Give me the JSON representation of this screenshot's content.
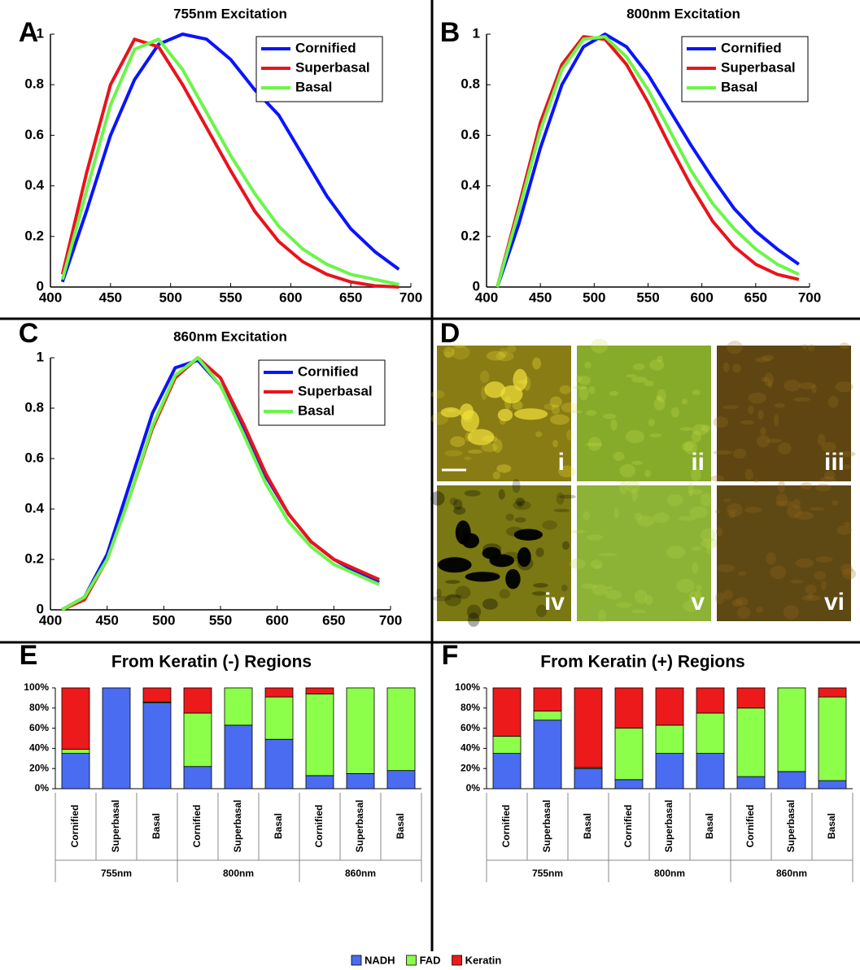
{
  "chart_data": [
    {
      "type": "line",
      "panel": "A",
      "title": "755nm Excitation",
      "legend": "upper right",
      "x": [
        410,
        430,
        450,
        470,
        490,
        510,
        530,
        550,
        570,
        590,
        610,
        630,
        650,
        670,
        690
      ],
      "xlim": [
        400,
        700
      ],
      "xticks": [
        400,
        450,
        500,
        550,
        600,
        650,
        700
      ],
      "ylim": [
        0,
        1
      ],
      "yticks": [
        0,
        0.2,
        0.4,
        0.6,
        0.8,
        1
      ],
      "series": [
        {
          "name": "Cornified",
          "color": "#0a14ff",
          "values": [
            0.02,
            0.3,
            0.6,
            0.82,
            0.96,
            1.0,
            0.98,
            0.9,
            0.78,
            0.68,
            0.52,
            0.36,
            0.23,
            0.14,
            0.07
          ]
        },
        {
          "name": "Superbasal",
          "color": "#e8141c",
          "values": [
            0.05,
            0.45,
            0.8,
            0.98,
            0.95,
            0.8,
            0.63,
            0.46,
            0.3,
            0.18,
            0.1,
            0.05,
            0.02,
            0.005,
            0
          ]
        },
        {
          "name": "Basal",
          "color": "#6cf54a",
          "values": [
            0.03,
            0.38,
            0.72,
            0.94,
            0.98,
            0.86,
            0.69,
            0.52,
            0.37,
            0.24,
            0.15,
            0.09,
            0.05,
            0.03,
            0.01
          ]
        }
      ]
    },
    {
      "type": "line",
      "panel": "B",
      "title": "800nm Excitation",
      "legend": "upper right",
      "x": [
        410,
        430,
        450,
        470,
        490,
        510,
        530,
        550,
        570,
        590,
        610,
        630,
        650,
        670,
        690
      ],
      "xlim": [
        400,
        700
      ],
      "xticks": [
        400,
        450,
        500,
        550,
        600,
        650,
        700
      ],
      "ylim": [
        0,
        1
      ],
      "yticks": [
        0,
        0.2,
        0.4,
        0.6,
        0.8,
        1
      ],
      "series": [
        {
          "name": "Cornified",
          "color": "#0a14ff",
          "values": [
            0,
            0.25,
            0.55,
            0.8,
            0.95,
            1.0,
            0.95,
            0.84,
            0.7,
            0.56,
            0.43,
            0.31,
            0.22,
            0.15,
            0.09
          ]
        },
        {
          "name": "Superbasal",
          "color": "#e8141c",
          "values": [
            0,
            0.32,
            0.65,
            0.88,
            0.99,
            0.98,
            0.88,
            0.73,
            0.56,
            0.4,
            0.26,
            0.16,
            0.09,
            0.05,
            0.03
          ]
        },
        {
          "name": "Basal",
          "color": "#6cf54a",
          "values": [
            0,
            0.3,
            0.62,
            0.86,
            0.98,
            0.99,
            0.91,
            0.78,
            0.62,
            0.46,
            0.33,
            0.23,
            0.15,
            0.09,
            0.05
          ]
        }
      ]
    },
    {
      "type": "line",
      "panel": "C",
      "title": "860nm Excitation",
      "legend": "upper right",
      "x": [
        410,
        430,
        450,
        470,
        490,
        510,
        530,
        550,
        570,
        590,
        610,
        630,
        650,
        670,
        690
      ],
      "xlim": [
        400,
        700
      ],
      "xticks": [
        400,
        450,
        500,
        550,
        600,
        650,
        700
      ],
      "ylim": [
        0,
        1
      ],
      "yticks": [
        0,
        0.2,
        0.4,
        0.6,
        0.8,
        1
      ],
      "series": [
        {
          "name": "Cornified",
          "color": "#0a14ff",
          "values": [
            0,
            0.05,
            0.22,
            0.5,
            0.78,
            0.96,
            0.99,
            0.89,
            0.72,
            0.53,
            0.38,
            0.27,
            0.2,
            0.15,
            0.11
          ]
        },
        {
          "name": "Superbasal",
          "color": "#e8141c",
          "values": [
            0,
            0.04,
            0.2,
            0.45,
            0.72,
            0.92,
            1.0,
            0.92,
            0.74,
            0.54,
            0.38,
            0.27,
            0.2,
            0.16,
            0.12
          ]
        },
        {
          "name": "Basal",
          "color": "#6cf54a",
          "values": [
            0,
            0.05,
            0.2,
            0.45,
            0.73,
            0.93,
            1.0,
            0.89,
            0.7,
            0.5,
            0.35,
            0.25,
            0.18,
            0.14,
            0.1
          ]
        }
      ]
    },
    {
      "type": "bar",
      "stacked": true,
      "panel": "E",
      "title": "From Keratin (-) Regions",
      "categories": [
        "Cornified",
        "Superbasal",
        "Basal",
        "Cornified",
        "Superbasal",
        "Basal",
        "Cornified",
        "Superbasal",
        "Basal"
      ],
      "groups": [
        "755nm",
        "800nm",
        "860nm"
      ],
      "ylim": [
        0,
        100
      ],
      "yticks": [
        {
          "value": 0,
          "label": "0%"
        },
        {
          "value": 20,
          "label": "20%"
        },
        {
          "value": 40,
          "label": "40%"
        },
        {
          "value": 60,
          "label": "60%"
        },
        {
          "value": 80,
          "label": "80%"
        },
        {
          "value": 100,
          "label": "100%"
        }
      ],
      "series": [
        {
          "name": "NADH",
          "color": "#4a6cf0",
          "values": [
            35,
            100,
            85,
            22,
            63,
            49,
            13,
            15,
            18
          ]
        },
        {
          "name": "FAD",
          "color": "#8cff4a",
          "values": [
            4,
            0,
            1,
            53,
            37,
            42,
            81,
            85,
            82
          ]
        },
        {
          "name": "Keratin",
          "color": "#ec1a1a",
          "values": [
            61,
            0,
            14,
            25,
            0,
            9,
            6,
            0,
            0
          ]
        }
      ]
    },
    {
      "type": "bar",
      "stacked": true,
      "panel": "F",
      "title": "From Keratin (+) Regions",
      "categories": [
        "Cornified",
        "Superbasal",
        "Basal",
        "Cornified",
        "Superbasal",
        "Basal",
        "Cornified",
        "Superbasal",
        "Basal"
      ],
      "groups": [
        "755nm",
        "800nm",
        "860nm"
      ],
      "ylim": [
        0,
        100
      ],
      "yticks": [
        {
          "value": 0,
          "label": "0%"
        },
        {
          "value": 20,
          "label": "20%"
        },
        {
          "value": 40,
          "label": "40%"
        },
        {
          "value": 60,
          "label": "60%"
        },
        {
          "value": 80,
          "label": "80%"
        },
        {
          "value": 100,
          "label": "100%"
        }
      ],
      "series": [
        {
          "name": "NADH",
          "color": "#4a6cf0",
          "values": [
            35,
            68,
            20,
            9,
            35,
            35,
            12,
            17,
            8
          ]
        },
        {
          "name": "FAD",
          "color": "#8cff4a",
          "values": [
            17,
            9,
            1,
            51,
            28,
            40,
            68,
            83,
            83
          ]
        },
        {
          "name": "Keratin",
          "color": "#ec1a1a",
          "values": [
            48,
            23,
            79,
            40,
            37,
            25,
            20,
            0,
            9
          ]
        }
      ]
    }
  ],
  "image_panel": {
    "panel": "D",
    "labels": [
      "i",
      "ii",
      "iii",
      "iv",
      "v",
      "vi"
    ]
  }
}
